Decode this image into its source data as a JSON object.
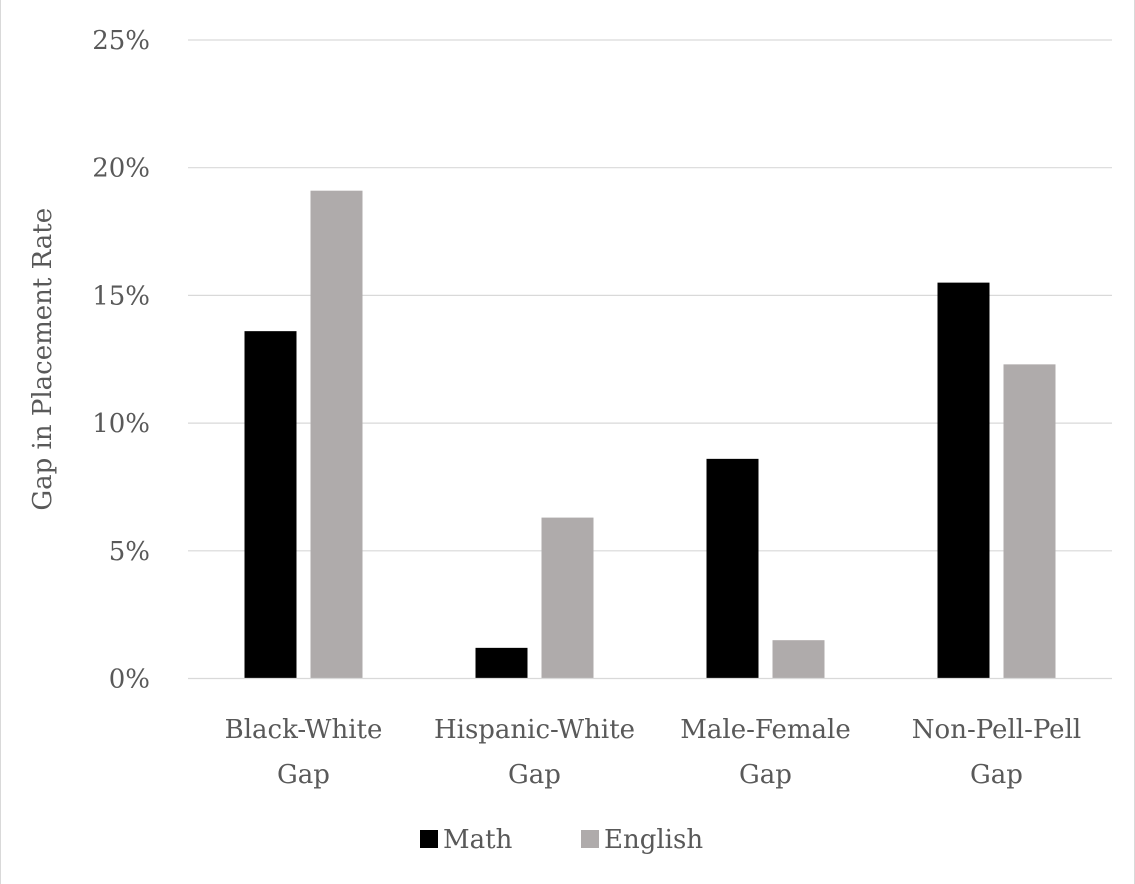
{
  "chart_data": {
    "type": "bar",
    "title": "",
    "xlabel": "",
    "ylabel": "Gap in Placement Rate",
    "ylim": [
      0,
      25
    ],
    "yticks": [
      "0%",
      "5%",
      "10%",
      "15%",
      "20%",
      "25%"
    ],
    "ytick_values": [
      0,
      5,
      10,
      15,
      20,
      25
    ],
    "categories": [
      [
        "Black-White",
        "Gap"
      ],
      [
        "Hispanic-White",
        "Gap"
      ],
      [
        "Male-Female",
        "Gap"
      ],
      [
        "Non-Pell-Pell",
        "Gap"
      ]
    ],
    "series": [
      {
        "name": "Math",
        "color": "#000000",
        "values": [
          13.6,
          1.2,
          8.6,
          15.5
        ]
      },
      {
        "name": "English",
        "color": "#afabab",
        "values": [
          19.1,
          6.3,
          1.5,
          12.3
        ]
      }
    ],
    "grid": true,
    "legend": "bottom"
  }
}
